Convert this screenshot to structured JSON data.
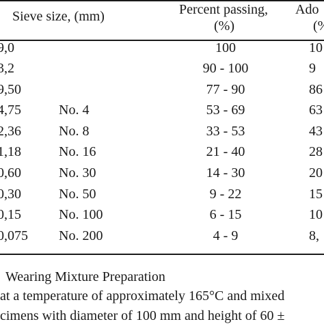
{
  "table": {
    "headers": {
      "sieve_size": "Sieve size, (mm)",
      "percent_passing_line1": "Percent passing,",
      "percent_passing_line2": "(%)",
      "adopted_line1": "Ado",
      "adopted_line2": "(%"
    },
    "rows": [
      {
        "mm": "9,0",
        "no": "",
        "passing": "100",
        "adopted": "10"
      },
      {
        "mm": "3,2",
        "no": "",
        "passing": "90 - 100",
        "adopted": "9"
      },
      {
        "mm": "9,50",
        "no": "",
        "passing": "77 - 90",
        "adopted": "86"
      },
      {
        "mm": "4,75",
        "no": "No. 4",
        "passing": "53 - 69",
        "adopted": "63"
      },
      {
        "mm": "2,36",
        "no": "No. 8",
        "passing": "33 - 53",
        "adopted": "43"
      },
      {
        "mm": "1,18",
        "no": "No. 16",
        "passing": "21 - 40",
        "adopted": "28"
      },
      {
        "mm": "0,60",
        "no": "No. 30",
        "passing": "14 - 30",
        "adopted": "20"
      },
      {
        "mm": "0,30",
        "no": "No. 50",
        "passing": "9 - 22",
        "adopted": "15"
      },
      {
        "mm": "0,15",
        "no": "No. 100",
        "passing": "6 - 15",
        "adopted": "10"
      },
      {
        "mm": "0,075",
        "no": "No. 200",
        "passing": "4 - 9",
        "adopted": "8,"
      }
    ]
  },
  "text": {
    "heading": "Wearing Mixture Preparation",
    "line1": "at a temperature of approximately 165°C and mixed",
    "line2": "cimens with diameter of 100 mm and height of 60 ±"
  }
}
